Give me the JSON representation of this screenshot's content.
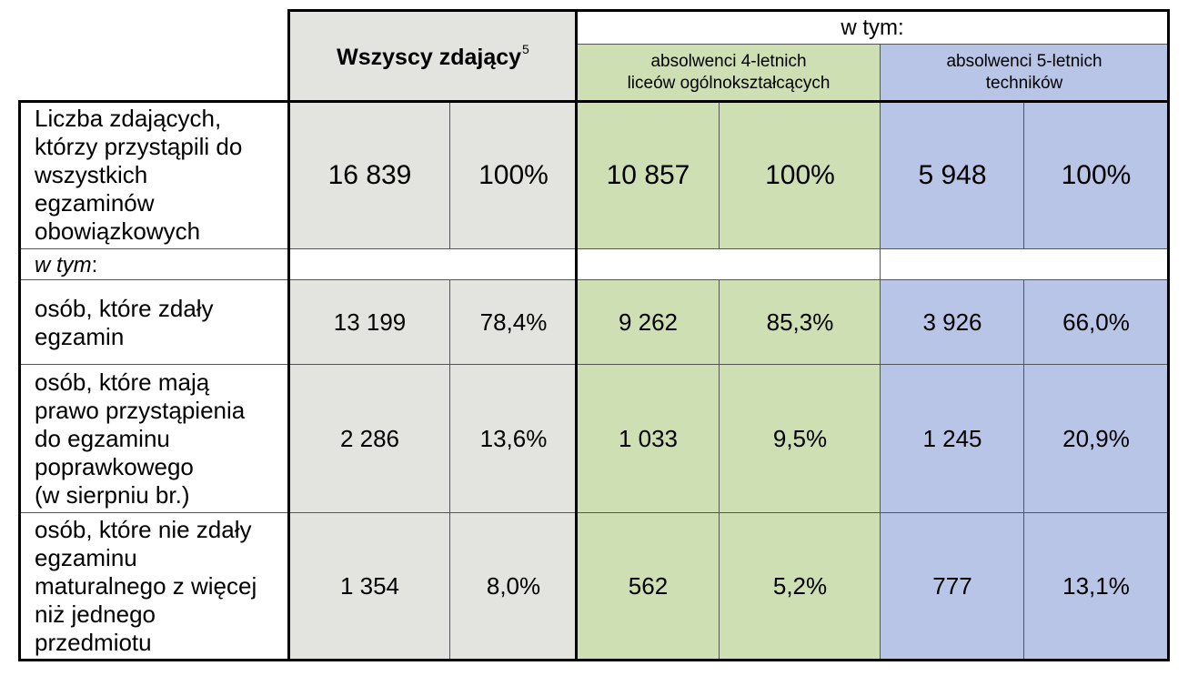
{
  "header": {
    "all_label": "Wszyscy zdający",
    "all_sup": "5",
    "w_tym": "w tym:",
    "group1_line1": "absolwenci 4-letnich",
    "group1_line2": "liceów ogólnokształcących",
    "group2_line1": "absolwenci 5-letnich",
    "group2_line2": "techników"
  },
  "subheader_label": "w tym",
  "subheader_colon": ":",
  "rows": [
    {
      "label_lines": [
        "Liczba zdających,",
        "którzy przystąpili do",
        "wszystkich",
        "egzaminów",
        "obowiązkowych"
      ],
      "values": [
        "16 839",
        "100%",
        "10 857",
        "100%",
        "5 948",
        "100%"
      ]
    },
    {
      "label_lines": [
        "osób, które zdały",
        "egzamin"
      ],
      "values": [
        "13 199",
        "78,4%",
        "9 262",
        "85,3%",
        "3 926",
        "66,0%"
      ]
    },
    {
      "label_lines": [
        "osób, które mają",
        "prawo przystąpienia",
        "do egzaminu",
        "poprawkowego",
        "(w sierpniu br.)"
      ],
      "values": [
        "2 286",
        "13,6%",
        "1 033",
        "9,5%",
        "1 245",
        "20,9%"
      ]
    },
    {
      "label_lines": [
        "osób, które nie zdały",
        "egzaminu",
        "maturalnego z więcej",
        "niż jednego",
        "przedmiotu"
      ],
      "values": [
        "1 354",
        "8,0%",
        "562",
        "5,2%",
        "777",
        "13,1%"
      ]
    }
  ]
}
